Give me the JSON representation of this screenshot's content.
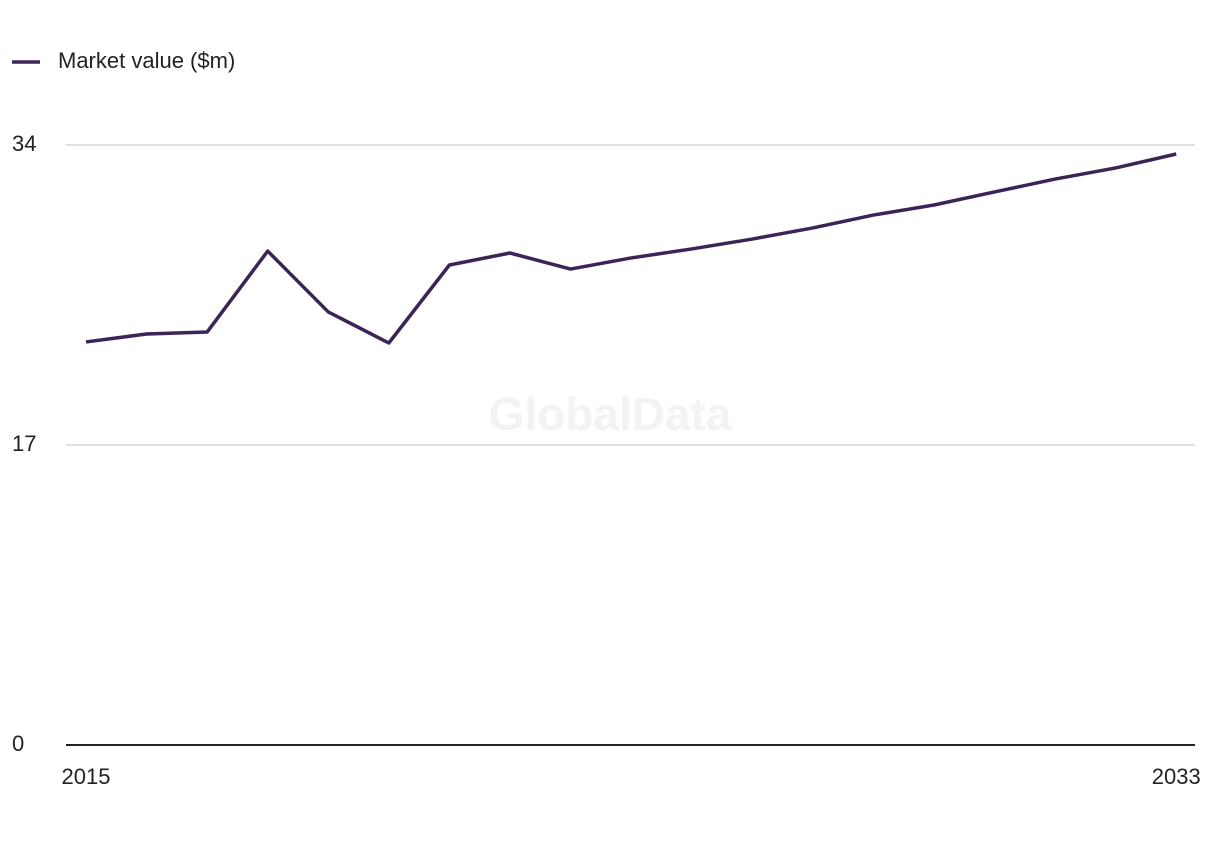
{
  "chart_data": {
    "type": "line",
    "watermark": "GlobalData",
    "x": [
      2015,
      2016,
      2017,
      2018,
      2019,
      2020,
      2021,
      2022,
      2023,
      2024,
      2025,
      2026,
      2027,
      2028,
      2029,
      2030,
      2031,
      2032,
      2033
    ],
    "series": [
      {
        "name": "Market value ($m)",
        "color": "#3a2556",
        "values": [
          22.84,
          23.29,
          23.4,
          27.99,
          24.54,
          22.78,
          27.2,
          27.88,
          26.97,
          27.6,
          28.11,
          28.67,
          29.3,
          30.03,
          30.6,
          31.34,
          32.07,
          32.7,
          33.49
        ]
      }
    ],
    "xlim": [
      2014.67,
      2033.31
    ],
    "xticks": [
      2015,
      2033
    ],
    "ylim": [
      0,
      34
    ],
    "yticks": [
      0,
      17,
      34
    ],
    "grid": true,
    "legend": "top-left"
  }
}
